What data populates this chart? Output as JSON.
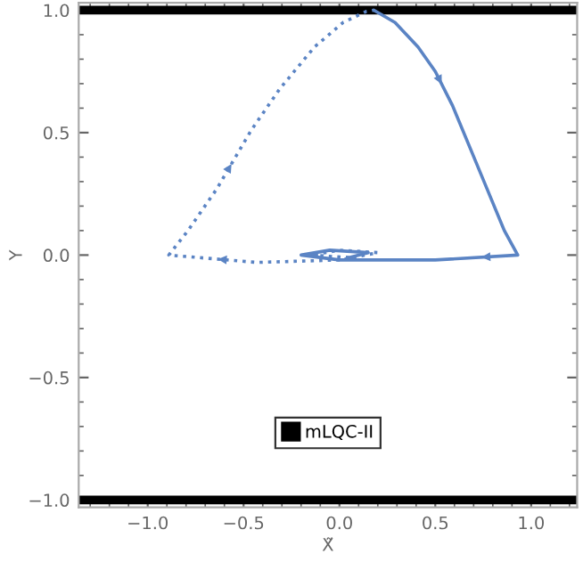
{
  "chart_data": {
    "type": "line",
    "xlabel": "X̃",
    "ylabel": "Y",
    "xlim": [
      -1.36,
      1.24
    ],
    "ylim": [
      -1.03,
      1.03
    ],
    "xticks": [
      {
        "value": -1.0,
        "label": "−1.0"
      },
      {
        "value": -0.5,
        "label": "−0.5"
      },
      {
        "value": 0.0,
        "label": "0.0"
      },
      {
        "value": 0.5,
        "label": "0.5"
      },
      {
        "value": 1.0,
        "label": "1.0"
      }
    ],
    "yticks": [
      {
        "value": -1.0,
        "label": "−1.0"
      },
      {
        "value": -0.5,
        "label": "−0.5"
      },
      {
        "value": 0.0,
        "label": "0.0"
      },
      {
        "value": 0.5,
        "label": "0.5"
      },
      {
        "value": 1.0,
        "label": "1.0"
      }
    ],
    "grid": false,
    "legend": "bottom",
    "series": [
      {
        "name": "mLQC-II",
        "color": "#000000",
        "x": [
          -1.36,
          1.24
        ],
        "values": [
          1.0,
          1.0
        ]
      },
      {
        "color": "#000000",
        "x": [
          -1.36,
          1.24
        ],
        "values": [
          -1.0,
          -1.0
        ]
      },
      {
        "color": "#5b84c4",
        "line_style": "solid",
        "x": [
          0.18,
          0.29,
          0.41,
          0.5,
          0.59,
          0.68,
          0.77,
          0.86,
          0.93,
          0.5,
          0.2,
          0.0,
          -0.2,
          -0.05,
          0.15,
          0.05
        ],
        "values": [
          1.0,
          0.95,
          0.85,
          0.75,
          0.61,
          0.44,
          0.27,
          0.1,
          0.0,
          -0.02,
          -0.02,
          -0.02,
          0.0,
          0.02,
          0.01,
          -0.01
        ]
      },
      {
        "color": "#5b84c4",
        "line_style": "dotted",
        "x": [
          0.05,
          -0.15,
          0.0,
          0.2,
          0.0,
          -0.43,
          -0.89,
          -0.79,
          -0.64,
          -0.46,
          -0.31,
          -0.13,
          0.02,
          0.14,
          0.18
        ],
        "values": [
          -0.01,
          0.0,
          0.02,
          0.01,
          -0.02,
          -0.03,
          0.0,
          0.1,
          0.27,
          0.51,
          0.68,
          0.85,
          0.95,
          0.995,
          1.0
        ]
      }
    ]
  }
}
